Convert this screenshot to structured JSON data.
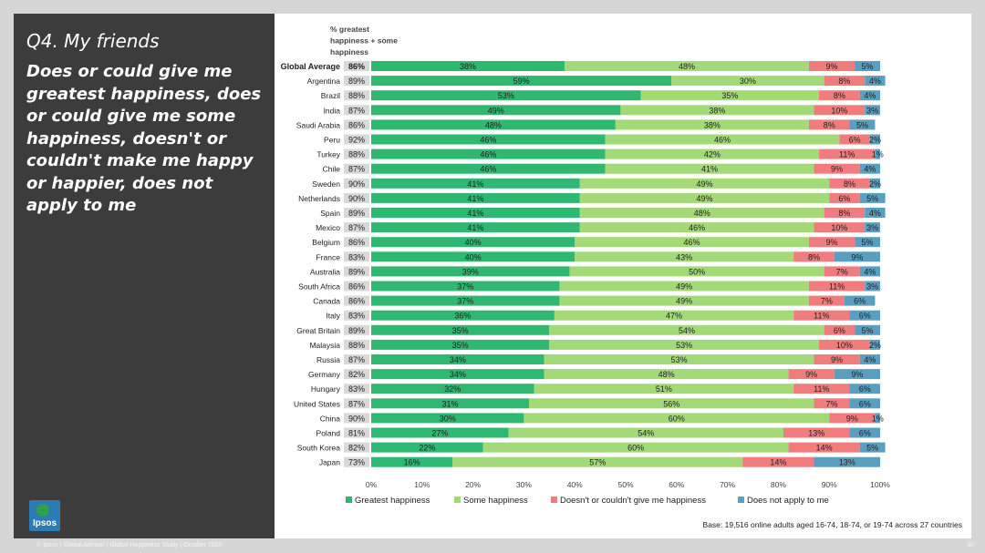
{
  "slide": {
    "title": "Q4. My friends",
    "question": "Does or could give me greatest happiness, does or could give me some happiness, doesn't or couldn't make me happy or happier, does not apply to me",
    "logo_text": "Ipsos",
    "footer": "© Ipsos | Global Advisor | Global Happiness Study | October 2020",
    "page_number": "30",
    "base_note": "Base: 19,516 online adults aged 16-74, 18-74, or 19-74 across 27 countries"
  },
  "chart_data": {
    "type": "bar",
    "orientation": "horizontal",
    "stacked": true,
    "percent_column_header": [
      "% greatest",
      "happiness + some",
      "happiness"
    ],
    "categories": [
      "Global Average",
      "Argentina",
      "Brazil",
      "India",
      "Saudi Arabia",
      "Peru",
      "Turkey",
      "Chile",
      "Sweden",
      "Netherlands",
      "Spain",
      "Mexico",
      "Belgium",
      "France",
      "Australia",
      "South Africa",
      "Canada",
      "Italy",
      "Great Britain",
      "Malaysia",
      "Russia",
      "Germany",
      "Hungary",
      "United States",
      "China",
      "Poland",
      "South Korea",
      "Japan"
    ],
    "net_values": [
      "86%",
      "89%",
      "88%",
      "87%",
      "86%",
      "92%",
      "88%",
      "87%",
      "90%",
      "90%",
      "89%",
      "87%",
      "86%",
      "83%",
      "89%",
      "86%",
      "86%",
      "83%",
      "89%",
      "88%",
      "87%",
      "82%",
      "83%",
      "87%",
      "90%",
      "81%",
      "82%",
      "73%"
    ],
    "series": [
      {
        "name": "Greatest happiness",
        "color": "#2eb872",
        "values": [
          38,
          59,
          53,
          49,
          48,
          46,
          46,
          46,
          41,
          41,
          41,
          41,
          40,
          40,
          39,
          37,
          37,
          36,
          35,
          35,
          34,
          34,
          32,
          31,
          30,
          27,
          22,
          16
        ]
      },
      {
        "name": "Some happiness",
        "color": "#a3d977",
        "values": [
          48,
          30,
          35,
          38,
          38,
          46,
          42,
          41,
          49,
          49,
          48,
          46,
          46,
          43,
          50,
          49,
          49,
          47,
          54,
          53,
          53,
          48,
          51,
          56,
          60,
          54,
          60,
          57
        ]
      },
      {
        "name": "Doesn't or couldn't give me happiness",
        "color": "#f07c7e",
        "values": [
          9,
          8,
          8,
          10,
          8,
          6,
          11,
          9,
          8,
          6,
          8,
          10,
          9,
          8,
          7,
          11,
          7,
          11,
          6,
          10,
          9,
          9,
          11,
          7,
          9,
          13,
          14,
          14
        ]
      },
      {
        "name": "Does not apply to me",
        "color": "#5a9fbf",
        "values": [
          5,
          4,
          4,
          3,
          5,
          2,
          1,
          4,
          2,
          5,
          4,
          3,
          5,
          9,
          4,
          3,
          6,
          6,
          5,
          2,
          4,
          9,
          6,
          6,
          1,
          6,
          5,
          13
        ]
      }
    ],
    "xlim": [
      0,
      100
    ],
    "x_ticks": [
      "0%",
      "10%",
      "20%",
      "30%",
      "40%",
      "50%",
      "60%",
      "70%",
      "80%",
      "90%",
      "100%"
    ],
    "legend_position": "bottom"
  }
}
